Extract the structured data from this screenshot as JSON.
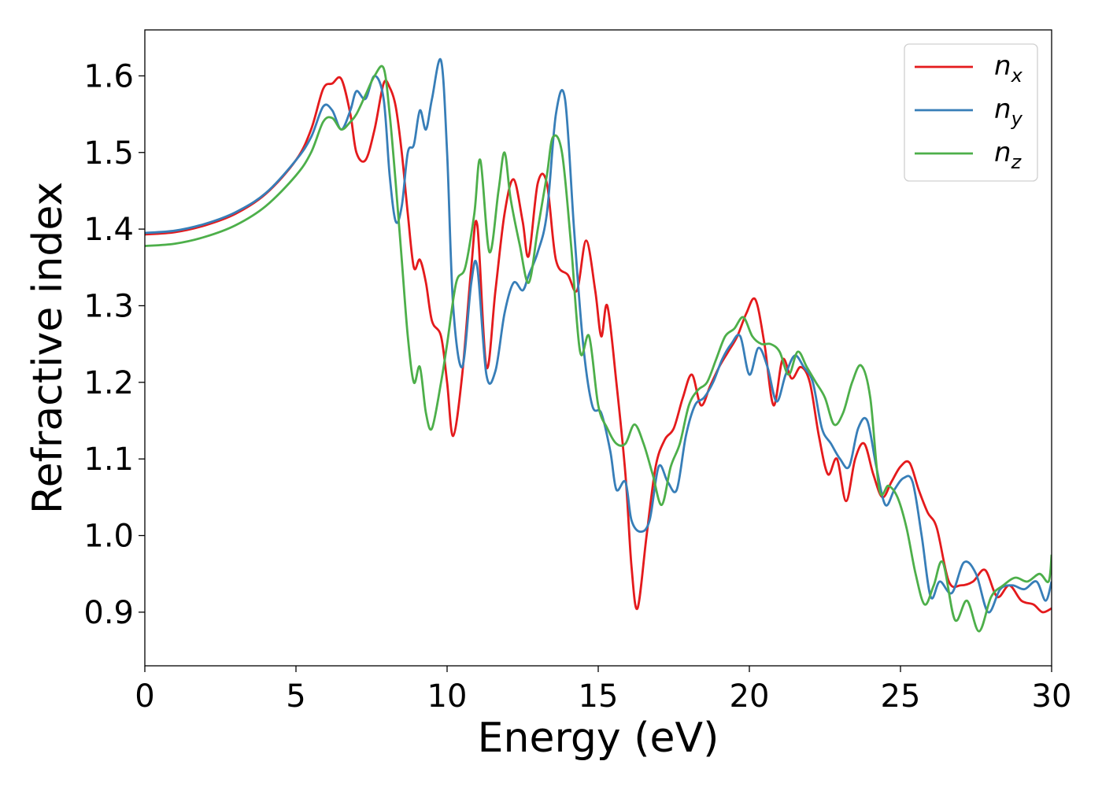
{
  "chart_data": {
    "type": "line",
    "title": "",
    "xlabel": "Energy (eV)",
    "ylabel": "Refractive index",
    "xlim": [
      0,
      30
    ],
    "ylim": [
      0.83,
      1.66
    ],
    "xticks": [
      0,
      5,
      10,
      15,
      20,
      25,
      30
    ],
    "xtick_labels": [
      "0",
      "5",
      "10",
      "15",
      "20",
      "25",
      "30"
    ],
    "yticks": [
      0.9,
      1.0,
      1.1,
      1.2,
      1.3,
      1.4,
      1.5,
      1.6
    ],
    "ytick_labels": [
      "0.9",
      "1.0",
      "1.1",
      "1.2",
      "1.3",
      "1.4",
      "1.5",
      "1.6"
    ],
    "grid": false,
    "legend_position": "top-right",
    "series": [
      {
        "name": "n_x",
        "label_base": "n",
        "label_sub": "x",
        "color": "#e41a1c",
        "x": [
          0,
          1,
          2,
          3,
          4,
          5,
          5.5,
          5.9,
          6.2,
          6.5,
          6.8,
          7.0,
          7.3,
          7.6,
          7.9,
          8.1,
          8.3,
          8.5,
          8.7,
          8.9,
          9.1,
          9.3,
          9.5,
          9.8,
          10.0,
          10.2,
          10.5,
          10.8,
          11.0,
          11.3,
          11.6,
          11.9,
          12.2,
          12.5,
          12.7,
          13.0,
          13.3,
          13.6,
          14.0,
          14.3,
          14.6,
          14.9,
          15.1,
          15.3,
          15.6,
          15.9,
          16.1,
          16.3,
          16.6,
          16.9,
          17.2,
          17.5,
          17.8,
          18.1,
          18.4,
          18.7,
          19.0,
          19.3,
          19.6,
          19.9,
          20.2,
          20.5,
          20.8,
          21.1,
          21.4,
          21.7,
          22.0,
          22.3,
          22.6,
          22.9,
          23.2,
          23.5,
          23.8,
          24.1,
          24.4,
          24.7,
          25.0,
          25.3,
          25.6,
          25.9,
          26.2,
          26.6,
          27.0,
          27.4,
          27.8,
          28.2,
          28.6,
          29.0,
          29.4,
          29.7,
          30
        ],
        "y": [
          1.393,
          1.396,
          1.405,
          1.42,
          1.446,
          1.49,
          1.53,
          1.583,
          1.59,
          1.596,
          1.55,
          1.5,
          1.49,
          1.53,
          1.59,
          1.585,
          1.56,
          1.5,
          1.42,
          1.35,
          1.36,
          1.33,
          1.28,
          1.26,
          1.2,
          1.13,
          1.21,
          1.35,
          1.405,
          1.22,
          1.32,
          1.42,
          1.465,
          1.41,
          1.365,
          1.46,
          1.46,
          1.36,
          1.34,
          1.32,
          1.385,
          1.32,
          1.26,
          1.3,
          1.2,
          1.08,
          0.96,
          0.905,
          1.0,
          1.09,
          1.125,
          1.14,
          1.18,
          1.21,
          1.17,
          1.195,
          1.22,
          1.24,
          1.26,
          1.29,
          1.308,
          1.25,
          1.17,
          1.23,
          1.205,
          1.22,
          1.2,
          1.13,
          1.08,
          1.1,
          1.045,
          1.1,
          1.12,
          1.08,
          1.05,
          1.07,
          1.09,
          1.095,
          1.06,
          1.03,
          1.01,
          0.94,
          0.935,
          0.94,
          0.955,
          0.92,
          0.935,
          0.915,
          0.91,
          0.9,
          0.905
        ]
      },
      {
        "name": "n_y",
        "label_base": "n",
        "label_sub": "y",
        "color": "#377eb8",
        "x": [
          0,
          1,
          2,
          3,
          4,
          5,
          5.5,
          5.9,
          6.2,
          6.5,
          6.8,
          7.0,
          7.3,
          7.6,
          7.9,
          8.1,
          8.3,
          8.5,
          8.7,
          8.9,
          9.1,
          9.3,
          9.5,
          9.8,
          10.0,
          10.2,
          10.5,
          10.8,
          11.0,
          11.3,
          11.6,
          11.9,
          12.2,
          12.5,
          12.7,
          13.0,
          13.3,
          13.6,
          13.9,
          14.2,
          14.5,
          14.8,
          15.1,
          15.4,
          15.6,
          15.9,
          16.1,
          16.4,
          16.7,
          17.0,
          17.3,
          17.6,
          17.9,
          18.2,
          18.5,
          18.8,
          19.1,
          19.4,
          19.7,
          20.0,
          20.3,
          20.6,
          20.9,
          21.2,
          21.5,
          21.8,
          22.1,
          22.4,
          22.7,
          23.0,
          23.3,
          23.6,
          23.9,
          24.2,
          24.5,
          24.8,
          25.1,
          25.4,
          25.7,
          26.0,
          26.3,
          26.7,
          27.1,
          27.5,
          27.9,
          28.3,
          28.7,
          29.1,
          29.5,
          29.8,
          30
        ],
        "y": [
          1.395,
          1.398,
          1.407,
          1.422,
          1.447,
          1.49,
          1.52,
          1.56,
          1.555,
          1.53,
          1.555,
          1.58,
          1.57,
          1.6,
          1.57,
          1.47,
          1.41,
          1.43,
          1.5,
          1.51,
          1.555,
          1.53,
          1.57,
          1.62,
          1.5,
          1.3,
          1.22,
          1.33,
          1.35,
          1.21,
          1.215,
          1.29,
          1.33,
          1.32,
          1.34,
          1.37,
          1.42,
          1.55,
          1.57,
          1.4,
          1.25,
          1.17,
          1.16,
          1.11,
          1.06,
          1.07,
          1.02,
          1.005,
          1.02,
          1.09,
          1.07,
          1.06,
          1.13,
          1.17,
          1.18,
          1.2,
          1.23,
          1.25,
          1.26,
          1.21,
          1.245,
          1.22,
          1.175,
          1.21,
          1.235,
          1.22,
          1.2,
          1.14,
          1.12,
          1.1,
          1.09,
          1.14,
          1.15,
          1.09,
          1.04,
          1.06,
          1.075,
          1.07,
          1.0,
          0.92,
          0.94,
          0.925,
          0.965,
          0.95,
          0.9,
          0.93,
          0.935,
          0.93,
          0.94,
          0.915,
          0.94
        ]
      },
      {
        "name": "n_z",
        "label_base": "n",
        "label_sub": "z",
        "color": "#4daf4a",
        "x": [
          0,
          1,
          2,
          3,
          4,
          5,
          5.5,
          5.9,
          6.2,
          6.5,
          6.8,
          7.0,
          7.3,
          7.6,
          7.9,
          8.1,
          8.3,
          8.5,
          8.7,
          8.9,
          9.1,
          9.3,
          9.5,
          9.8,
          10.0,
          10.3,
          10.6,
          10.9,
          11.1,
          11.4,
          11.7,
          11.9,
          12.1,
          12.4,
          12.7,
          13.0,
          13.3,
          13.5,
          13.8,
          14.1,
          14.4,
          14.7,
          15.0,
          15.3,
          15.6,
          15.9,
          16.2,
          16.5,
          16.8,
          17.1,
          17.4,
          17.7,
          18.0,
          18.3,
          18.6,
          18.9,
          19.2,
          19.5,
          19.8,
          20.1,
          20.4,
          20.7,
          21.0,
          21.3,
          21.6,
          21.9,
          22.2,
          22.5,
          22.8,
          23.1,
          23.4,
          23.7,
          24.0,
          24.3,
          24.6,
          24.9,
          25.2,
          25.5,
          25.8,
          26.1,
          26.4,
          26.8,
          27.2,
          27.6,
          28.0,
          28.4,
          28.8,
          29.2,
          29.6,
          29.9,
          30
        ],
        "y": [
          1.378,
          1.381,
          1.39,
          1.405,
          1.43,
          1.47,
          1.5,
          1.54,
          1.545,
          1.53,
          1.54,
          1.55,
          1.575,
          1.6,
          1.61,
          1.55,
          1.46,
          1.36,
          1.26,
          1.2,
          1.22,
          1.16,
          1.14,
          1.2,
          1.25,
          1.33,
          1.35,
          1.42,
          1.49,
          1.37,
          1.45,
          1.5,
          1.44,
          1.38,
          1.33,
          1.4,
          1.47,
          1.52,
          1.5,
          1.38,
          1.24,
          1.26,
          1.17,
          1.14,
          1.12,
          1.12,
          1.145,
          1.12,
          1.08,
          1.04,
          1.09,
          1.12,
          1.17,
          1.19,
          1.2,
          1.23,
          1.26,
          1.27,
          1.285,
          1.26,
          1.25,
          1.25,
          1.24,
          1.21,
          1.24,
          1.22,
          1.2,
          1.18,
          1.145,
          1.16,
          1.2,
          1.222,
          1.18,
          1.06,
          1.065,
          1.05,
          1.01,
          0.95,
          0.91,
          0.935,
          0.965,
          0.89,
          0.915,
          0.875,
          0.92,
          0.935,
          0.945,
          0.94,
          0.95,
          0.94,
          0.975
        ]
      }
    ]
  }
}
